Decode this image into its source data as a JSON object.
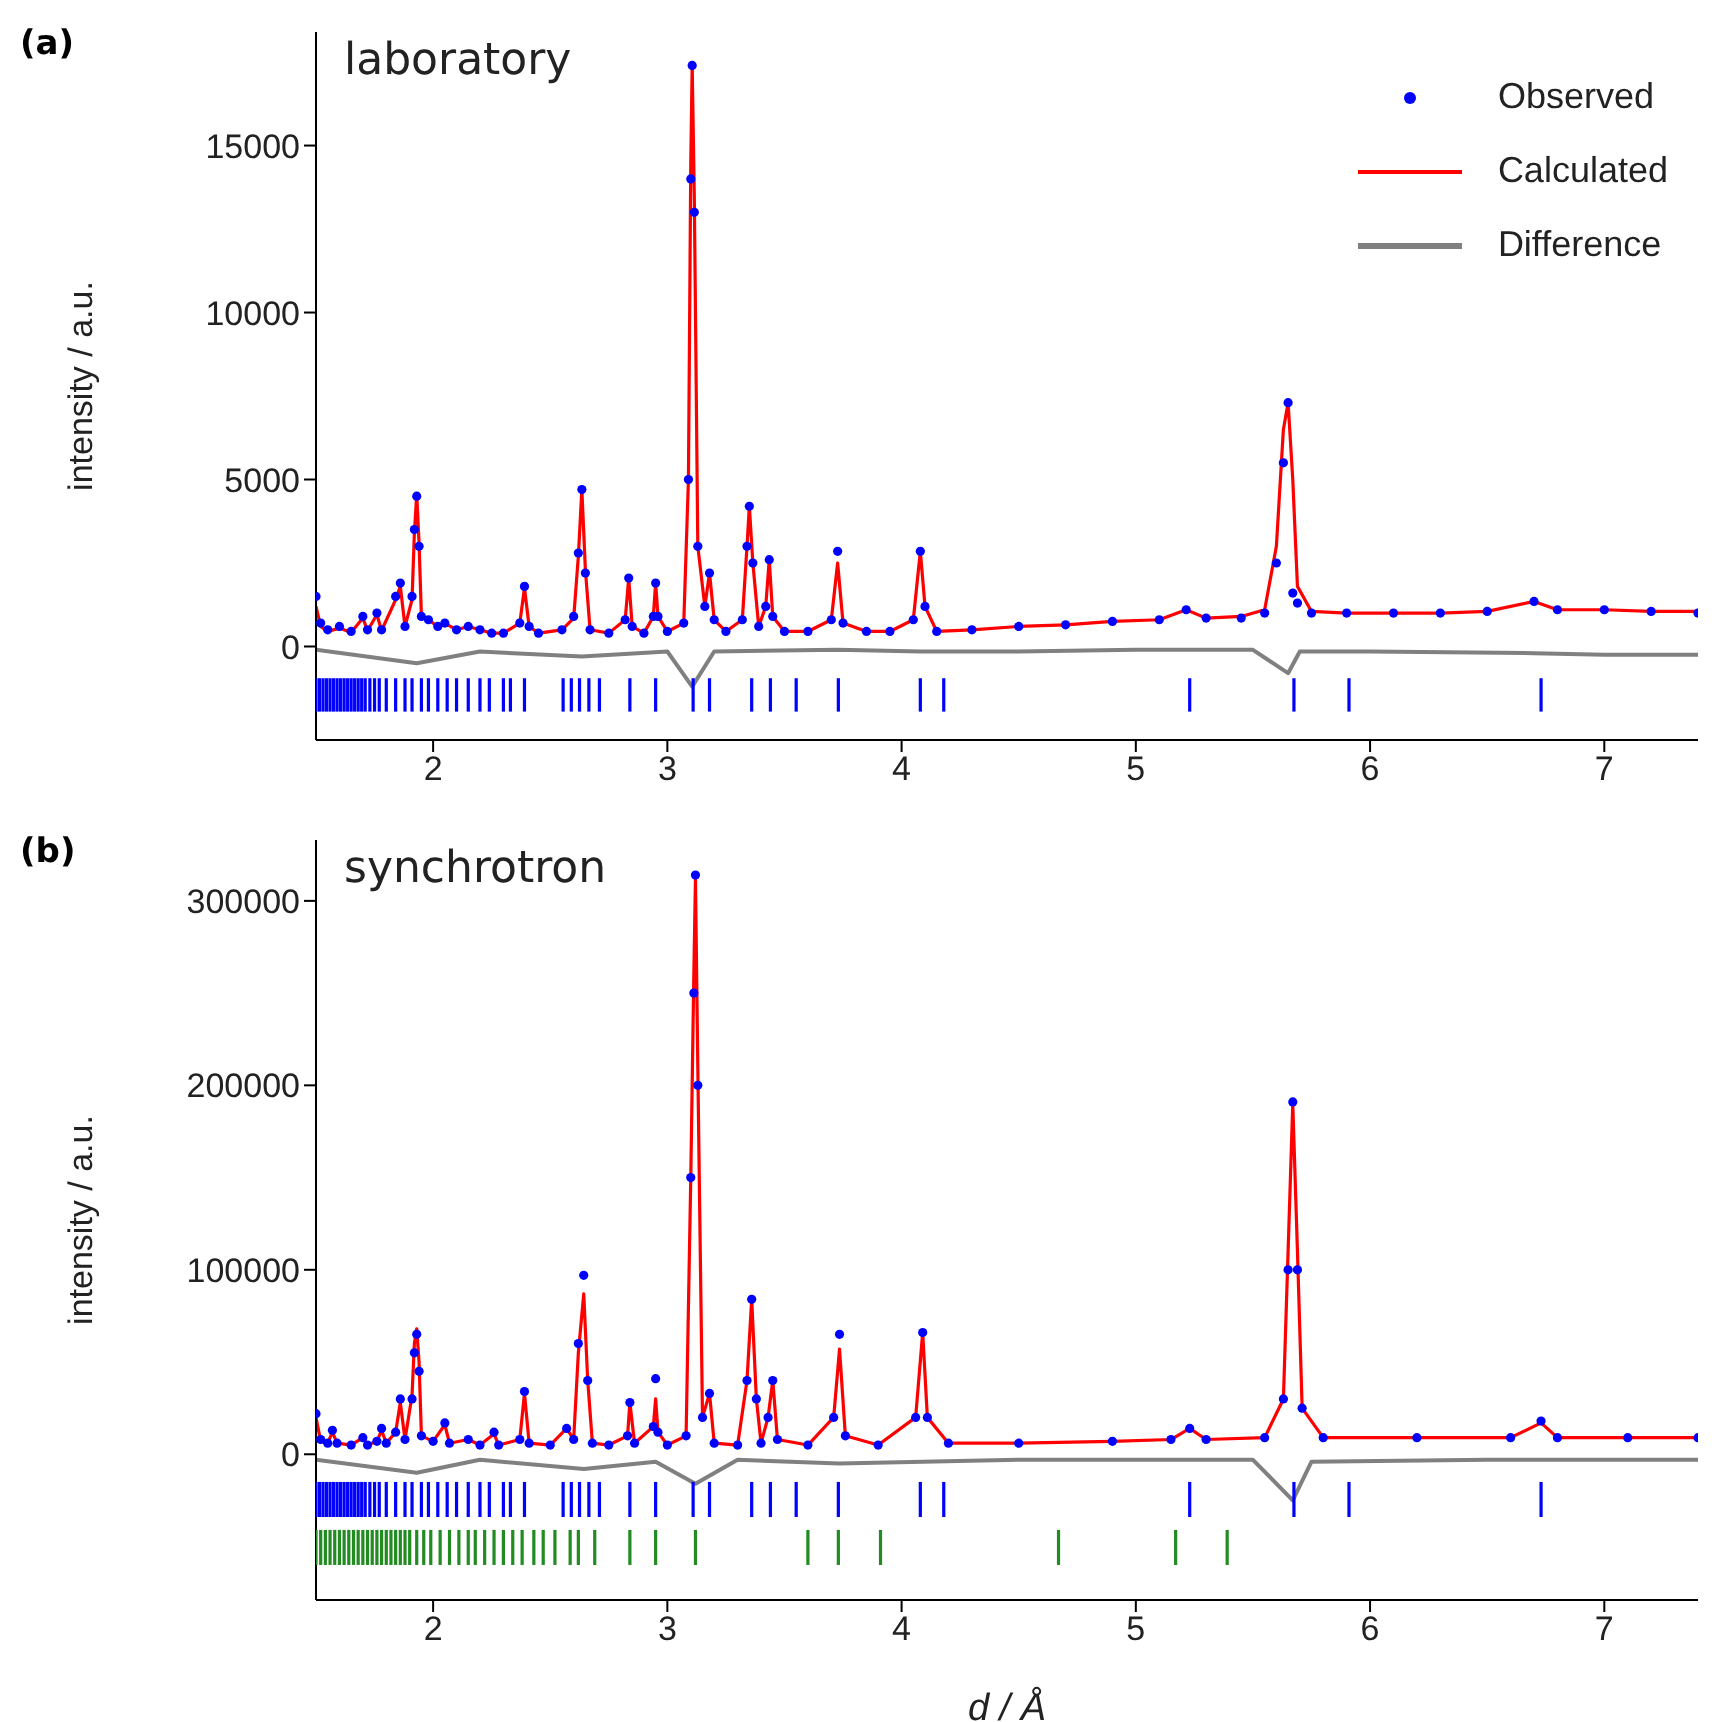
{
  "chart_data": [
    {
      "type": "line",
      "annotations": [
        "(a)",
        "laboratory"
      ],
      "ylabel": "intensity / a.u.",
      "xlim": [
        1.5,
        7.4
      ],
      "xticks": [
        2,
        3,
        4,
        5,
        6,
        7
      ],
      "ylim": [
        -2800,
        18400
      ],
      "yticks": [
        0,
        5000,
        10000,
        15000
      ],
      "legend": "top right",
      "series": [
        {
          "name": "Observed",
          "type": "scatter",
          "marker": "circle",
          "color": "#0000ff",
          "x": [
            1.5,
            1.52,
            1.55,
            1.6,
            1.65,
            1.7,
            1.72,
            1.76,
            1.78,
            1.84,
            1.86,
            1.88,
            1.91,
            1.92,
            1.93,
            1.94,
            1.95,
            1.98,
            2.02,
            2.05,
            2.1,
            2.15,
            2.2,
            2.25,
            2.3,
            2.37,
            2.39,
            2.41,
            2.45,
            2.55,
            2.6,
            2.62,
            2.635,
            2.65,
            2.67,
            2.75,
            2.82,
            2.835,
            2.85,
            2.9,
            2.94,
            2.95,
            2.96,
            3.0,
            3.07,
            3.09,
            3.1,
            3.106,
            3.115,
            3.13,
            3.16,
            3.18,
            3.2,
            3.25,
            3.32,
            3.34,
            3.35,
            3.365,
            3.39,
            3.42,
            3.435,
            3.45,
            3.5,
            3.6,
            3.7,
            3.727,
            3.75,
            3.85,
            3.95,
            4.05,
            4.08,
            4.1,
            4.15,
            4.3,
            4.5,
            4.7,
            4.9,
            5.1,
            5.215,
            5.3,
            5.45,
            5.55,
            5.6,
            5.63,
            5.65,
            5.67,
            5.69,
            5.75,
            5.9,
            6.1,
            6.3,
            6.5,
            6.7,
            6.8,
            7.0,
            7.2,
            7.4
          ],
          "values": [
            1500,
            700,
            500,
            600,
            450,
            900,
            500,
            1000,
            500,
            1500,
            1900,
            600,
            1500,
            3500,
            4500,
            3000,
            900,
            800,
            600,
            700,
            500,
            600,
            500,
            400,
            400,
            700,
            1800,
            600,
            400,
            500,
            900,
            2800,
            4700,
            2200,
            500,
            400,
            800,
            2050,
            600,
            400,
            900,
            1900,
            900,
            450,
            700,
            5000,
            14000,
            17400,
            13000,
            3000,
            1200,
            2200,
            800,
            450,
            800,
            3000,
            4200,
            2500,
            600,
            1200,
            2600,
            900,
            450,
            450,
            800,
            2850,
            700,
            450,
            450,
            800,
            2850,
            1200,
            450,
            500,
            600,
            650,
            750,
            800,
            1100,
            850,
            850,
            1000,
            2500,
            5500,
            7300,
            1600,
            1300,
            1000,
            1000,
            1000,
            1000,
            1050,
            1350,
            1100,
            1100,
            1050,
            1000
          ]
        },
        {
          "name": "Calculated",
          "color": "#ff0000",
          "x": [
            1.5,
            1.52,
            1.55,
            1.6,
            1.65,
            1.7,
            1.72,
            1.76,
            1.78,
            1.84,
            1.86,
            1.88,
            1.91,
            1.92,
            1.93,
            1.94,
            1.95,
            1.98,
            2.02,
            2.05,
            2.1,
            2.15,
            2.2,
            2.25,
            2.3,
            2.37,
            2.39,
            2.41,
            2.45,
            2.55,
            2.6,
            2.62,
            2.635,
            2.65,
            2.67,
            2.75,
            2.82,
            2.835,
            2.85,
            2.9,
            2.94,
            2.95,
            2.96,
            3.0,
            3.07,
            3.09,
            3.1,
            3.106,
            3.115,
            3.13,
            3.16,
            3.18,
            3.2,
            3.25,
            3.32,
            3.34,
            3.35,
            3.365,
            3.39,
            3.42,
            3.435,
            3.45,
            3.5,
            3.6,
            3.7,
            3.727,
            3.75,
            3.85,
            3.95,
            4.05,
            4.08,
            4.1,
            4.15,
            4.3,
            4.5,
            4.7,
            4.9,
            5.1,
            5.215,
            5.3,
            5.45,
            5.55,
            5.6,
            5.63,
            5.65,
            5.67,
            5.69,
            5.75,
            5.9,
            6.1,
            6.3,
            6.5,
            6.7,
            6.8,
            7.0,
            7.2,
            7.4
          ],
          "values": [
            1200,
            600,
            450,
            550,
            420,
            850,
            480,
            950,
            480,
            1400,
            1800,
            600,
            1400,
            3400,
            4550,
            3100,
            900,
            800,
            600,
            700,
            500,
            600,
            500,
            400,
            400,
            700,
            1750,
            600,
            400,
            500,
            850,
            2700,
            4700,
            2300,
            500,
            400,
            800,
            2050,
            600,
            400,
            900,
            1900,
            900,
            450,
            700,
            5000,
            14500,
            17400,
            13500,
            3000,
            1200,
            2200,
            800,
            450,
            800,
            3000,
            4200,
            2500,
            600,
            1200,
            2600,
            900,
            450,
            450,
            800,
            2500,
            700,
            450,
            450,
            800,
            2850,
            1200,
            450,
            500,
            600,
            650,
            750,
            800,
            1100,
            850,
            900,
            1100,
            3000,
            6500,
            7300,
            5000,
            1800,
            1050,
            1000,
            1000,
            1000,
            1050,
            1350,
            1100,
            1100,
            1050,
            1050
          ]
        },
        {
          "name": "Difference",
          "color": "#808080",
          "x": [
            1.5,
            1.93,
            2.2,
            2.635,
            3.0,
            3.106,
            3.2,
            3.727,
            4.08,
            4.5,
            5.0,
            5.5,
            5.65,
            5.7,
            6.0,
            6.7,
            7.0,
            7.4
          ],
          "values": [
            -100,
            -500,
            -150,
            -300,
            -150,
            -1200,
            -150,
            -100,
            -150,
            -150,
            -100,
            -100,
            -800,
            -150,
            -150,
            -200,
            -250,
            -250
          ]
        },
        {
          "type": "bar",
          "color": "#0000ff",
          "x": [
            1.5,
            1.515,
            1.53,
            1.545,
            1.56,
            1.575,
            1.59,
            1.605,
            1.62,
            1.635,
            1.65,
            1.665,
            1.68,
            1.695,
            1.71,
            1.73,
            1.75,
            1.77,
            1.8,
            1.84,
            1.88,
            1.91,
            1.95,
            1.98,
            2.02,
            2.06,
            2.1,
            2.15,
            2.2,
            2.24,
            2.3,
            2.33,
            2.39,
            2.555,
            2.59,
            2.625,
            2.665,
            2.71,
            2.84,
            2.95,
            3.11,
            3.18,
            3.36,
            3.44,
            3.55,
            3.73,
            4.08,
            4.18,
            5.23,
            5.675,
            5.91,
            6.73
          ],
          "base": [
            -1950,
            -1950,
            -1950,
            -1950,
            -1950,
            -1950,
            -1950,
            -1950,
            -1950,
            -1950,
            -1950,
            -1950,
            -1950,
            -1950,
            -1950,
            -1950,
            -1950,
            -1950,
            -1950,
            -1950,
            -1950,
            -1950,
            -1950,
            -1950,
            -1950,
            -1950,
            -1950,
            -1950,
            -1950,
            -1950,
            -1950,
            -1950,
            -1950,
            -1950,
            -1950,
            -1950,
            -1950,
            -1950,
            -1950,
            -1950,
            -1950,
            -1950,
            -1950,
            -1950,
            -1950,
            -1950,
            -1950,
            -1950,
            -1950,
            -1950,
            -1950,
            -1950
          ],
          "values": [
            1000,
            1000,
            1000,
            1000,
            1000,
            1000,
            1000,
            1000,
            1000,
            1000,
            1000,
            1000,
            1000,
            1000,
            1000,
            1000,
            1000,
            1000,
            1000,
            1000,
            1000,
            1000,
            1000,
            1000,
            1000,
            1000,
            1000,
            1000,
            1000,
            1000,
            1000,
            1000,
            1000,
            1000,
            1000,
            1000,
            1000,
            1000,
            1000,
            1000,
            1000,
            1000,
            1000,
            1000,
            1000,
            1000,
            1000,
            1000,
            1000,
            1000,
            1000,
            1000
          ]
        }
      ]
    },
    {
      "type": "line",
      "annotations": [
        "(b)",
        "synchrotron"
      ],
      "xlabel": "d / Å",
      "ylabel": "intensity / a.u.",
      "xlim": [
        1.5,
        7.4
      ],
      "xticks": [
        2,
        3,
        4,
        5,
        6,
        7
      ],
      "ylim": [
        -79000,
        333000
      ],
      "yticks": [
        0,
        100000,
        200000,
        300000
      ],
      "series": [
        {
          "type": "scatter",
          "marker": "circle",
          "color": "#0000ff",
          "x": [
            1.5,
            1.52,
            1.55,
            1.57,
            1.59,
            1.65,
            1.7,
            1.72,
            1.76,
            1.78,
            1.8,
            1.84,
            1.86,
            1.88,
            1.91,
            1.92,
            1.93,
            1.94,
            1.95,
            2.0,
            2.05,
            2.07,
            2.15,
            2.2,
            2.26,
            2.28,
            2.37,
            2.39,
            2.41,
            2.5,
            2.57,
            2.6,
            2.62,
            2.643,
            2.66,
            2.68,
            2.75,
            2.83,
            2.84,
            2.86,
            2.94,
            2.95,
            2.96,
            3.0,
            3.08,
            3.1,
            3.113,
            3.12,
            3.13,
            3.15,
            3.18,
            3.2,
            3.3,
            3.34,
            3.36,
            3.38,
            3.4,
            3.43,
            3.45,
            3.47,
            3.6,
            3.71,
            3.735,
            3.76,
            3.9,
            4.06,
            4.09,
            4.11,
            4.2,
            4.5,
            4.9,
            5.15,
            5.23,
            5.3,
            5.55,
            5.63,
            5.65,
            5.67,
            5.69,
            5.71,
            5.8,
            6.2,
            6.6,
            6.73,
            6.8,
            7.1,
            7.4
          ],
          "values": [
            22000,
            8000,
            6000,
            13000,
            6000,
            5000,
            9000,
            5000,
            7000,
            14000,
            6000,
            12000,
            30000,
            8000,
            30000,
            55000,
            65000,
            45000,
            10000,
            7000,
            17000,
            6000,
            8000,
            5000,
            12000,
            5000,
            8000,
            34000,
            6000,
            5000,
            14000,
            8000,
            60000,
            97000,
            40000,
            6000,
            5000,
            10000,
            28000,
            6000,
            15000,
            41000,
            12000,
            5000,
            10000,
            150000,
            250000,
            314000,
            200000,
            20000,
            33000,
            6000,
            5000,
            40000,
            84000,
            30000,
            6000,
            20000,
            40000,
            8000,
            5000,
            20000,
            65000,
            10000,
            5000,
            20000,
            66000,
            20000,
            6000,
            6000,
            7000,
            8000,
            14000,
            8000,
            9000,
            30000,
            100000,
            191000,
            100000,
            25000,
            9000,
            9000,
            9000,
            18000,
            9000,
            9000,
            9000
          ]
        },
        {
          "color": "#ff0000",
          "x": [
            1.5,
            1.52,
            1.55,
            1.57,
            1.59,
            1.65,
            1.7,
            1.72,
            1.76,
            1.78,
            1.8,
            1.84,
            1.86,
            1.88,
            1.91,
            1.92,
            1.93,
            1.94,
            1.95,
            2.0,
            2.05,
            2.07,
            2.15,
            2.2,
            2.26,
            2.28,
            2.37,
            2.39,
            2.41,
            2.5,
            2.57,
            2.6,
            2.62,
            2.643,
            2.66,
            2.68,
            2.75,
            2.83,
            2.84,
            2.86,
            2.94,
            2.95,
            2.96,
            3.0,
            3.08,
            3.1,
            3.113,
            3.12,
            3.13,
            3.15,
            3.18,
            3.2,
            3.3,
            3.34,
            3.36,
            3.38,
            3.4,
            3.43,
            3.45,
            3.47,
            3.6,
            3.71,
            3.735,
            3.76,
            3.9,
            4.06,
            4.09,
            4.11,
            4.2,
            4.5,
            4.9,
            5.15,
            5.23,
            5.3,
            5.55,
            5.63,
            5.65,
            5.67,
            5.69,
            5.71,
            5.8,
            6.2,
            6.6,
            6.73,
            6.8,
            7.1,
            7.4
          ],
          "values": [
            20000,
            7000,
            6000,
            12000,
            6000,
            5000,
            9000,
            5000,
            7000,
            13000,
            6000,
            12000,
            28000,
            8000,
            32000,
            60000,
            68000,
            50000,
            10000,
            7000,
            16000,
            6000,
            8000,
            5000,
            11000,
            5000,
            8000,
            33000,
            6000,
            5000,
            14000,
            8000,
            55000,
            87000,
            40000,
            6000,
            5000,
            10000,
            28000,
            6000,
            15000,
            30000,
            12000,
            5000,
            10000,
            150000,
            260000,
            312000,
            210000,
            20000,
            33000,
            6000,
            5000,
            40000,
            84000,
            30000,
            6000,
            20000,
            40000,
            8000,
            5000,
            20000,
            57000,
            10000,
            5000,
            20000,
            66000,
            20000,
            6000,
            6000,
            7000,
            8000,
            14000,
            8000,
            9000,
            30000,
            110000,
            190000,
            110000,
            25000,
            9000,
            9000,
            9000,
            17000,
            9000,
            9000,
            9000
          ]
        },
        {
          "color": "#808080",
          "x": [
            1.5,
            1.93,
            2.2,
            2.643,
            2.95,
            3.12,
            3.3,
            3.735,
            4.09,
            4.5,
            5.0,
            5.5,
            5.67,
            5.75,
            6.5,
            7.4
          ],
          "values": [
            -3000,
            -10000,
            -3000,
            -8000,
            -4000,
            -16000,
            -3000,
            -5000,
            -4000,
            -3000,
            -3000,
            -3000,
            -25000,
            -4000,
            -3000,
            -3000
          ]
        },
        {
          "type": "bar",
          "color": "#0000ff",
          "x": [
            1.5,
            1.515,
            1.53,
            1.545,
            1.56,
            1.575,
            1.59,
            1.605,
            1.62,
            1.635,
            1.65,
            1.665,
            1.68,
            1.695,
            1.71,
            1.73,
            1.75,
            1.77,
            1.8,
            1.84,
            1.88,
            1.91,
            1.95,
            1.98,
            2.02,
            2.06,
            2.1,
            2.15,
            2.2,
            2.24,
            2.3,
            2.33,
            2.39,
            2.555,
            2.59,
            2.625,
            2.665,
            2.71,
            2.84,
            2.95,
            3.11,
            3.18,
            3.36,
            3.44,
            3.55,
            3.73,
            4.08,
            4.18,
            5.23,
            5.675,
            5.91,
            6.73
          ],
          "base": [
            -34000,
            -34000,
            -34000,
            -34000,
            -34000,
            -34000,
            -34000,
            -34000,
            -34000,
            -34000,
            -34000,
            -34000,
            -34000,
            -34000,
            -34000,
            -34000,
            -34000,
            -34000,
            -34000,
            -34000,
            -34000,
            -34000,
            -34000,
            -34000,
            -34000,
            -34000,
            -34000,
            -34000,
            -34000,
            -34000,
            -34000,
            -34000,
            -34000,
            -34000,
            -34000,
            -34000,
            -34000,
            -34000,
            -34000,
            -34000,
            -34000,
            -34000,
            -34000,
            -34000,
            -34000,
            -34000,
            -34000,
            -34000,
            -34000,
            -34000,
            -34000,
            -34000
          ],
          "values": [
            19000,
            19000,
            19000,
            19000,
            19000,
            19000,
            19000,
            19000,
            19000,
            19000,
            19000,
            19000,
            19000,
            19000,
            19000,
            19000,
            19000,
            19000,
            19000,
            19000,
            19000,
            19000,
            19000,
            19000,
            19000,
            19000,
            19000,
            19000,
            19000,
            19000,
            19000,
            19000,
            19000,
            19000,
            19000,
            19000,
            19000,
            19000,
            19000,
            19000,
            19000,
            19000,
            19000,
            19000,
            19000,
            19000,
            19000,
            19000,
            19000,
            19000,
            19000,
            19000
          ]
        },
        {
          "type": "bar",
          "color": "#228b22",
          "x": [
            1.5,
            1.52,
            1.54,
            1.56,
            1.58,
            1.6,
            1.62,
            1.64,
            1.66,
            1.68,
            1.7,
            1.72,
            1.74,
            1.76,
            1.78,
            1.8,
            1.82,
            1.84,
            1.86,
            1.88,
            1.9,
            1.93,
            1.96,
            1.99,
            2.03,
            2.07,
            2.11,
            2.15,
            2.18,
            2.22,
            2.26,
            2.3,
            2.34,
            2.38,
            2.43,
            2.47,
            2.52,
            2.585,
            2.62,
            2.69,
            2.84,
            2.95,
            3.12,
            3.6,
            3.73,
            3.91,
            4.67,
            5.17,
            5.39
          ],
          "base": [
            -60000,
            -60000,
            -60000,
            -60000,
            -60000,
            -60000,
            -60000,
            -60000,
            -60000,
            -60000,
            -60000,
            -60000,
            -60000,
            -60000,
            -60000,
            -60000,
            -60000,
            -60000,
            -60000,
            -60000,
            -60000,
            -60000,
            -60000,
            -60000,
            -60000,
            -60000,
            -60000,
            -60000,
            -60000,
            -60000,
            -60000,
            -60000,
            -60000,
            -60000,
            -60000,
            -60000,
            -60000,
            -60000,
            -60000,
            -60000,
            -60000,
            -60000,
            -60000,
            -60000,
            -60000,
            -60000,
            -60000,
            -60000,
            -60000
          ],
          "values": [
            19000,
            19000,
            19000,
            19000,
            19000,
            19000,
            19000,
            19000,
            19000,
            19000,
            19000,
            19000,
            19000,
            19000,
            19000,
            19000,
            19000,
            19000,
            19000,
            19000,
            19000,
            19000,
            19000,
            19000,
            19000,
            19000,
            19000,
            19000,
            19000,
            19000,
            19000,
            19000,
            19000,
            19000,
            19000,
            19000,
            19000,
            19000,
            19000,
            19000,
            19000,
            19000,
            19000,
            19000,
            19000,
            19000,
            19000,
            19000,
            19000
          ]
        }
      ]
    }
  ]
}
